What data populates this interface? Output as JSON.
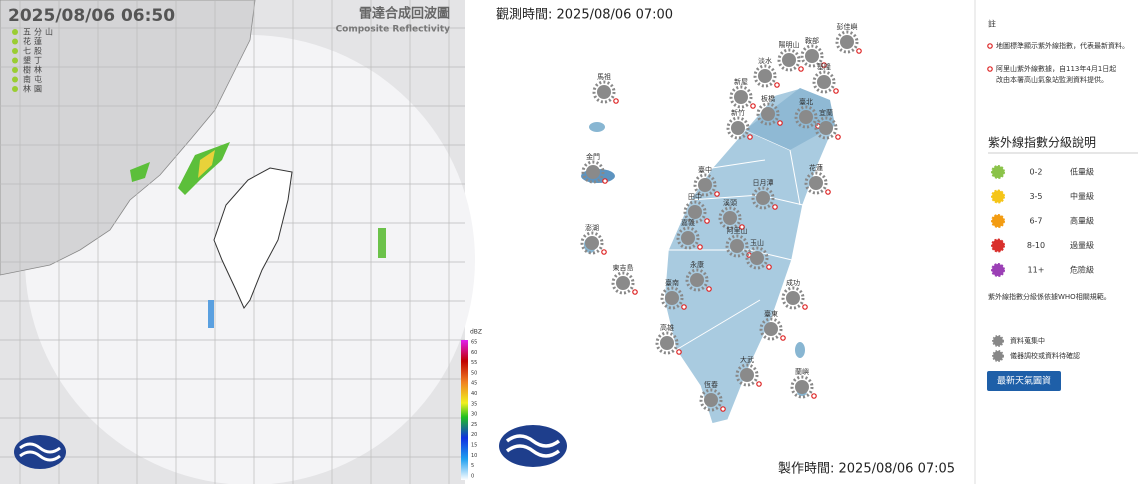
{
  "radar": {
    "time": "2025/08/06  06:50",
    "title": "雷達合成回波圖",
    "subtitle": "Composite Reflectivity",
    "stations": [
      "五分山",
      "花蓮",
      "七股",
      "墾丁",
      "樹林",
      "南屯",
      "林園"
    ],
    "scale_unit": "dBZ",
    "scale_labels": [
      "65",
      "60",
      "55",
      "50",
      "45",
      "40",
      "35",
      "30",
      "25",
      "20",
      "15",
      "10",
      "5",
      "0"
    ]
  },
  "uv": {
    "observed": "觀測時間: 2025/08/06 07:00",
    "produced": "製作時間: 2025/08/06 07:05",
    "stations": [
      "彭佳嶼",
      "鞍部",
      "陽明山",
      "淡水",
      "基隆",
      "新屋",
      "板橋",
      "臺北",
      "新竹",
      "宜蘭",
      "馬祖",
      "金門",
      "臺中",
      "日月潭",
      "花蓮",
      "田中",
      "溪頭",
      "嘉義",
      "阿里山",
      "玉山",
      "澎湖",
      "東吉島",
      "永康",
      "臺南",
      "高雄",
      "成功",
      "臺東",
      "大武",
      "恆春",
      "蘭嶼"
    ],
    "legend": {
      "note_title": "註",
      "notes": [
        "地圖標準顯示紫外線指數，代表最新資料。",
        "阿里山紫外線數據，自113年4月1日起改由本署高山氣象站監測資料提供。"
      ],
      "title": "紫外線指數分級說明",
      "levels": [
        {
          "range": "0-2",
          "label": "低量級",
          "color": "#8bc34a"
        },
        {
          "range": "3-5",
          "label": "中量級",
          "color": "#f5c518"
        },
        {
          "range": "6-7",
          "label": "高量級",
          "color": "#f39c12"
        },
        {
          "range": "8-10",
          "label": "過量級",
          "color": "#d9302c"
        },
        {
          "range": "11+",
          "label": "危險級",
          "color": "#9b3fb5"
        }
      ],
      "footnote": "紫外線指數分級係依據WHO相關規範。",
      "status": [
        "資料蒐集中",
        "儀器調校或資料待確認"
      ],
      "button": "最新天氣圖資"
    }
  }
}
